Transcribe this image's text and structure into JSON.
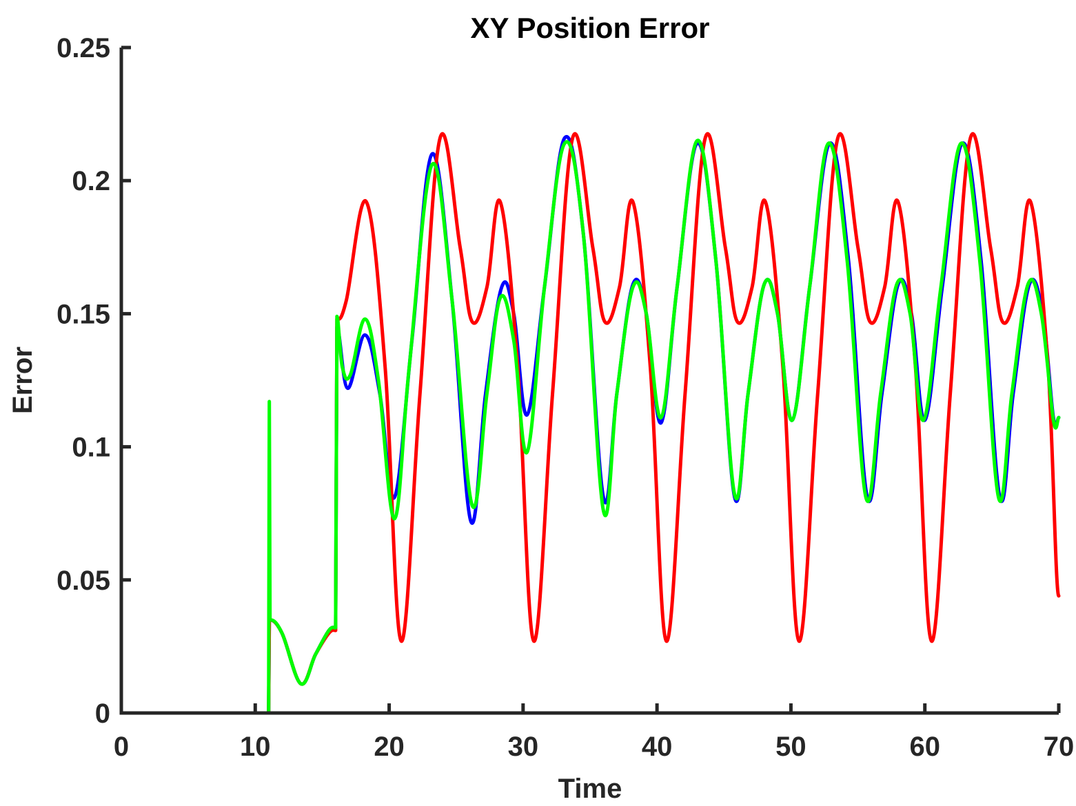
{
  "chart_data": {
    "type": "line",
    "title": "XY Position Error",
    "xlabel": "Time",
    "ylabel": "Error",
    "xlim": [
      0,
      70
    ],
    "ylim": [
      0,
      0.25
    ],
    "xticks": [
      0,
      10,
      20,
      30,
      40,
      50,
      60,
      70
    ],
    "xtick_labels": [
      "0",
      "10",
      "20",
      "30",
      "40",
      "50",
      "60",
      "70"
    ],
    "yticks": [
      0,
      0.05,
      0.1,
      0.15,
      0.2,
      0.25
    ],
    "ytick_labels": [
      "0",
      "0.05",
      "0.1",
      "0.15",
      "0.2",
      "0.25"
    ],
    "grid": false,
    "legend": "none",
    "series": [
      {
        "color": "#0000ff",
        "points": [
          [
            1,
            0
          ],
          [
            11,
            0
          ],
          [
            11.05,
            0.035
          ],
          [
            12,
            0.03
          ],
          [
            13.4,
            0.011
          ],
          [
            14.5,
            0.022
          ],
          [
            15.5,
            0.031
          ],
          [
            16,
            0.032
          ],
          [
            16.1,
            0.145
          ],
          [
            16.9,
            0.122
          ],
          [
            18.2,
            0.142
          ],
          [
            19.3,
            0.12
          ],
          [
            20.4,
            0.081
          ],
          [
            21.7,
            0.14
          ],
          [
            23.2,
            0.21
          ],
          [
            24.7,
            0.155
          ],
          [
            26.1,
            0.072
          ],
          [
            27.2,
            0.12
          ],
          [
            28.4,
            0.16
          ],
          [
            29.3,
            0.15
          ],
          [
            30.3,
            0.112
          ],
          [
            31.6,
            0.16
          ],
          [
            33.1,
            0.216
          ],
          [
            34.5,
            0.18
          ],
          [
            36,
            0.081
          ],
          [
            37,
            0.12
          ],
          [
            38.2,
            0.161
          ],
          [
            39.2,
            0.15
          ],
          [
            40.3,
            0.109
          ],
          [
            41.5,
            0.16
          ],
          [
            43,
            0.214
          ],
          [
            44.4,
            0.17
          ],
          [
            45.8,
            0.081
          ],
          [
            46.8,
            0.12
          ],
          [
            48,
            0.161
          ],
          [
            49,
            0.15
          ],
          [
            50.1,
            0.11
          ],
          [
            51.4,
            0.16
          ],
          [
            52.9,
            0.214
          ],
          [
            54.3,
            0.17
          ],
          [
            55.7,
            0.081
          ],
          [
            56.8,
            0.12
          ],
          [
            58,
            0.161
          ],
          [
            59,
            0.15
          ],
          [
            60,
            0.11
          ],
          [
            61.3,
            0.16
          ],
          [
            62.8,
            0.214
          ],
          [
            64.2,
            0.17
          ],
          [
            65.6,
            0.081
          ],
          [
            66.6,
            0.12
          ],
          [
            67.8,
            0.161
          ],
          [
            68.8,
            0.15
          ],
          [
            69.6,
            0.111
          ],
          [
            70,
            0.111
          ]
        ]
      },
      {
        "color": "#ff0000",
        "points": [
          [
            1,
            0
          ],
          [
            11,
            0
          ],
          [
            11.05,
            0.035
          ],
          [
            12,
            0.03
          ],
          [
            13.4,
            0.011
          ],
          [
            14.5,
            0.022
          ],
          [
            15.5,
            0.03
          ],
          [
            16,
            0.031
          ],
          [
            16.1,
            0.148
          ],
          [
            16.8,
            0.155
          ],
          [
            18.3,
            0.192
          ],
          [
            19.7,
            0.13
          ],
          [
            20.9,
            0.027
          ],
          [
            22.3,
            0.12
          ],
          [
            23.8,
            0.216
          ],
          [
            25.3,
            0.175
          ],
          [
            26.2,
            0.147
          ],
          [
            27.3,
            0.16
          ],
          [
            28.3,
            0.192
          ],
          [
            29.6,
            0.13
          ],
          [
            30.8,
            0.027
          ],
          [
            32.2,
            0.12
          ],
          [
            33.7,
            0.216
          ],
          [
            35.2,
            0.175
          ],
          [
            36.1,
            0.147
          ],
          [
            37.2,
            0.16
          ],
          [
            38.2,
            0.192
          ],
          [
            39.5,
            0.13
          ],
          [
            40.7,
            0.027
          ],
          [
            42.1,
            0.12
          ],
          [
            43.6,
            0.216
          ],
          [
            45.1,
            0.175
          ],
          [
            46,
            0.147
          ],
          [
            47.1,
            0.16
          ],
          [
            48.1,
            0.192
          ],
          [
            49.4,
            0.13
          ],
          [
            50.6,
            0.027
          ],
          [
            52,
            0.12
          ],
          [
            53.5,
            0.216
          ],
          [
            55,
            0.175
          ],
          [
            55.9,
            0.147
          ],
          [
            57,
            0.16
          ],
          [
            58,
            0.192
          ],
          [
            59.3,
            0.13
          ],
          [
            60.5,
            0.027
          ],
          [
            61.9,
            0.12
          ],
          [
            63.4,
            0.216
          ],
          [
            64.9,
            0.175
          ],
          [
            65.8,
            0.147
          ],
          [
            66.9,
            0.16
          ],
          [
            67.9,
            0.192
          ],
          [
            69.2,
            0.13
          ],
          [
            70,
            0.044
          ]
        ]
      },
      {
        "color": "#00ff00",
        "points": [
          [
            1,
            0
          ],
          [
            11,
            0
          ],
          [
            11.05,
            0.117
          ],
          [
            11.1,
            0.035
          ],
          [
            12,
            0.03
          ],
          [
            13.4,
            0.011
          ],
          [
            14.5,
            0.022
          ],
          [
            15.5,
            0.031
          ],
          [
            16,
            0.032
          ],
          [
            16.1,
            0.149
          ],
          [
            16.5,
            0.13
          ],
          [
            17.1,
            0.127
          ],
          [
            18.2,
            0.148
          ],
          [
            19.2,
            0.125
          ],
          [
            20.4,
            0.073
          ],
          [
            21.5,
            0.13
          ],
          [
            23.2,
            0.206
          ],
          [
            24.7,
            0.155
          ],
          [
            26.2,
            0.078
          ],
          [
            27.3,
            0.12
          ],
          [
            28.3,
            0.156
          ],
          [
            29.3,
            0.14
          ],
          [
            30.3,
            0.098
          ],
          [
            31.6,
            0.16
          ],
          [
            33.1,
            0.214
          ],
          [
            34.5,
            0.18
          ],
          [
            36,
            0.076
          ],
          [
            37,
            0.12
          ],
          [
            38.2,
            0.16
          ],
          [
            39.2,
            0.15
          ],
          [
            40.3,
            0.111
          ],
          [
            41.5,
            0.16
          ],
          [
            43,
            0.215
          ],
          [
            44.4,
            0.17
          ],
          [
            45.8,
            0.082
          ],
          [
            46.8,
            0.12
          ],
          [
            48,
            0.161
          ],
          [
            49,
            0.15
          ],
          [
            50.1,
            0.11
          ],
          [
            51.4,
            0.16
          ],
          [
            52.8,
            0.214
          ],
          [
            54.2,
            0.17
          ],
          [
            55.6,
            0.081
          ],
          [
            56.7,
            0.12
          ],
          [
            57.9,
            0.161
          ],
          [
            58.9,
            0.15
          ],
          [
            59.9,
            0.11
          ],
          [
            61.2,
            0.16
          ],
          [
            62.7,
            0.214
          ],
          [
            64.1,
            0.17
          ],
          [
            65.5,
            0.081
          ],
          [
            66.5,
            0.12
          ],
          [
            67.7,
            0.161
          ],
          [
            68.7,
            0.15
          ],
          [
            69.6,
            0.11
          ],
          [
            70,
            0.111
          ]
        ]
      }
    ]
  }
}
